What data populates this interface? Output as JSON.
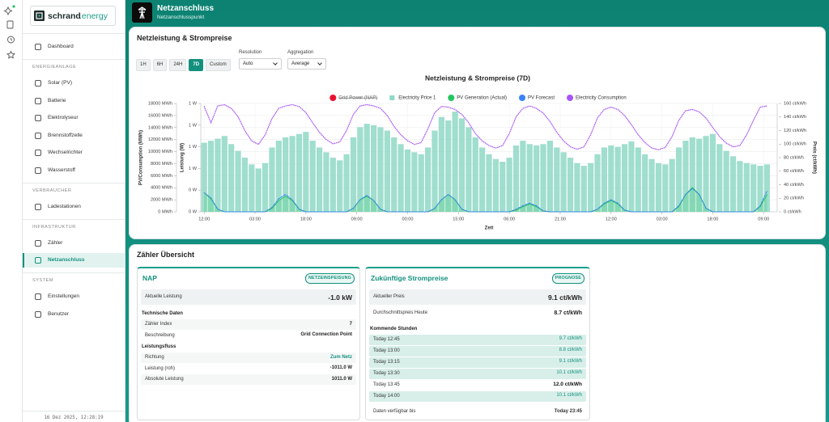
{
  "sidebar": {
    "brand": {
      "name": "schrand",
      "suffix": ".energy"
    },
    "home": "Dashboard",
    "sections": [
      {
        "title": "ENERGIEANLAGE",
        "items": [
          "Solar (PV)",
          "Batterie",
          "Elektrolyseur",
          "Brennstoffzelle",
          "Wechselrichter",
          "Wasserstoff"
        ]
      },
      {
        "title": "VERBRAUCHER",
        "items": [
          "Ladestationen"
        ]
      },
      {
        "title": "INFRASTRUKTUR",
        "items": [
          "Zähler",
          "Netzanschluss"
        ]
      },
      {
        "title": "SYSTEM",
        "items": [
          "Einstellungen",
          "Benutzer"
        ]
      }
    ],
    "active": "Netzanschluss",
    "timestamp": "16 Dez 2025, 12:28:19"
  },
  "header": {
    "title": "Netzanschluss",
    "subtitle": "Netzanschlusspunkt"
  },
  "chart_panel": {
    "title": "Netzleistung & Strompreise",
    "ranges": [
      "1H",
      "6H",
      "24H",
      "7D",
      "Custom"
    ],
    "selected_range": "7D",
    "resolution": {
      "label": "Resolution",
      "value": "Auto"
    },
    "aggregation": {
      "label": "Aggregation",
      "value": "Average"
    }
  },
  "chart_data": {
    "type": "combo",
    "title": "Netzleistung & Strompreise (7D)",
    "xlabel": "Zeit",
    "ylabel": "PV/Consumption (MWh)",
    "y3label": "Leistung (W)",
    "y2label": "Preis (ct/kWh)",
    "grid": true,
    "x": [
      0,
      2,
      4,
      6,
      8,
      10,
      12,
      14,
      16,
      18,
      20,
      22,
      24,
      26,
      28,
      30,
      32,
      34,
      36,
      38,
      40,
      42,
      44,
      46,
      48,
      50,
      52,
      54,
      56,
      58,
      60,
      62,
      64,
      66,
      68,
      70,
      72,
      74,
      76,
      78,
      80,
      82,
      84,
      86,
      88,
      90,
      92,
      94,
      96,
      98,
      100,
      102,
      104,
      106,
      108,
      110,
      112,
      114,
      116,
      118,
      120,
      122,
      124,
      126,
      128,
      130,
      132,
      134,
      136,
      138,
      140,
      142,
      144,
      146,
      148,
      150,
      152,
      154,
      156,
      158,
      160,
      162,
      164,
      166
    ],
    "xlim": [
      -1,
      169
    ],
    "xticks": [
      {
        "value": 0,
        "label": "12:00"
      },
      {
        "value": 15,
        "label": "03:00"
      },
      {
        "value": 30,
        "label": "18:00"
      },
      {
        "value": 45,
        "label": "09:00"
      },
      {
        "value": 60,
        "label": "00:00"
      },
      {
        "value": 75,
        "label": "15:00"
      },
      {
        "value": 90,
        "label": "06:00"
      },
      {
        "value": 105,
        "label": "21:00"
      },
      {
        "value": 120,
        "label": "12:00"
      },
      {
        "value": 135,
        "label": "03:00"
      },
      {
        "value": 150,
        "label": "18:00"
      },
      {
        "value": 165,
        "label": "09:00"
      }
    ],
    "ylim": [
      0,
      18000
    ],
    "yticks": [
      {
        "value": 0,
        "label": "0 MWh"
      },
      {
        "value": 2000,
        "label": "2000 MWh"
      },
      {
        "value": 4000,
        "label": "4000 MWh"
      },
      {
        "value": 6000,
        "label": "6000 MWh"
      },
      {
        "value": 8000,
        "label": "8000 MWh"
      },
      {
        "value": 10000,
        "label": "10000 MWh"
      },
      {
        "value": 12000,
        "label": "12000 MWh"
      },
      {
        "value": 14000,
        "label": "14000 MWh"
      },
      {
        "value": 16000,
        "label": "16000 MWh"
      },
      {
        "value": 18000,
        "label": "18000 MWh"
      }
    ],
    "y3lim": [
      0,
      1.25
    ],
    "y3ticks": [
      {
        "value": 0,
        "label": "0 W"
      },
      {
        "value": 0.25,
        "label": "0 W"
      },
      {
        "value": 0.5,
        "label": "1 W"
      },
      {
        "value": 0.75,
        "label": "1 W"
      },
      {
        "value": 1,
        "label": "1 W"
      },
      {
        "value": 1.25,
        "label": "1 W"
      }
    ],
    "y2lim": [
      0,
      160
    ],
    "y2ticks": [
      {
        "value": 0,
        "label": "0 ct/kWh"
      },
      {
        "value": 20,
        "label": "20 ct/kWh"
      },
      {
        "value": 40,
        "label": "40 ct/kWh"
      },
      {
        "value": 60,
        "label": "60 ct/kWh"
      },
      {
        "value": 80,
        "label": "80 ct/kWh"
      },
      {
        "value": 100,
        "label": "100 ct/kWh"
      },
      {
        "value": 120,
        "label": "120 ct/kWh"
      },
      {
        "value": 140,
        "label": "140 ct/kWh"
      },
      {
        "value": 160,
        "label": "160 ct/kWh"
      }
    ],
    "series": [
      {
        "name": "Grid Power (NAP)",
        "color": "#e8112d",
        "type": "line",
        "axis": "y3",
        "hidden": true
      },
      {
        "name": "Electricity Price 1",
        "color": "#8fd8c6",
        "type": "bar",
        "axis": "y2",
        "values": [
          102,
          105,
          108,
          112,
          100,
          90,
          80,
          70,
          64,
          72,
          95,
          105,
          110,
          112,
          115,
          118,
          105,
          95,
          88,
          80,
          76,
          85,
          110,
          125,
          130,
          128,
          125,
          120,
          110,
          100,
          92,
          88,
          85,
          95,
          120,
          140,
          135,
          148,
          138,
          125,
          110,
          95,
          85,
          78,
          74,
          80,
          98,
          105,
          100,
          98,
          100,
          105,
          95,
          88,
          80,
          72,
          68,
          72,
          85,
          95,
          98,
          96,
          100,
          104,
          95,
          85,
          78,
          72,
          70,
          78,
          95,
          105,
          110,
          108,
          112,
          115,
          100,
          90,
          82,
          75,
          72,
          70,
          68,
          70
        ]
      },
      {
        "name": "PV Generation (Actual)",
        "color": "#22c55e",
        "type": "line",
        "axis": "y3",
        "fill": true,
        "values": [
          0.22,
          0.15,
          0.03,
          0,
          0,
          0,
          0,
          0,
          0,
          0,
          0.04,
          0.13,
          0.18,
          0.13,
          0.03,
          0,
          0,
          0,
          0,
          0,
          0,
          0,
          0.04,
          0.14,
          0.18,
          0.13,
          0.03,
          0,
          0,
          0,
          0,
          0,
          0,
          0,
          0.04,
          0.14,
          0.2,
          0.14,
          0.03,
          0,
          0,
          0,
          0,
          0,
          0,
          0,
          0.02,
          0.06,
          0.09,
          0.06,
          0.01,
          0,
          0,
          0,
          0,
          0,
          0,
          0,
          0.03,
          0.09,
          0.13,
          0.09,
          0.02,
          0,
          0,
          0,
          0,
          0,
          0,
          0,
          0.06,
          0.2,
          0.28,
          0.2,
          0.04,
          0,
          0,
          0,
          0,
          0,
          0,
          0,
          0.06,
          0.2
        ]
      },
      {
        "name": "PV Forecast",
        "color": "#3b82f6",
        "type": "line",
        "axis": "y3",
        "style": "dashed",
        "values": [
          0.22,
          0.16,
          0.03,
          0,
          0,
          0,
          0,
          0,
          0,
          0,
          0.05,
          0.15,
          0.2,
          0.14,
          0.03,
          0,
          0,
          0,
          0,
          0,
          0,
          0,
          0.04,
          0.14,
          0.19,
          0.13,
          0.03,
          0,
          0,
          0,
          0,
          0,
          0,
          0,
          0.04,
          0.14,
          0.2,
          0.14,
          0.03,
          0,
          0,
          0,
          0,
          0,
          0,
          0,
          0.03,
          0.07,
          0.1,
          0.07,
          0.01,
          0,
          0,
          0,
          0,
          0,
          0,
          0,
          0.03,
          0.1,
          0.14,
          0.1,
          0.02,
          0,
          0,
          0,
          0,
          0,
          0,
          0,
          0.07,
          0.2,
          0.27,
          0.2,
          0.04,
          0,
          0,
          0,
          0,
          0,
          0,
          0,
          0.07,
          0.24
        ]
      },
      {
        "name": "Electricity Consumption",
        "color": "#a855f7",
        "type": "line",
        "axis": "y",
        "style": "dotted",
        "values": [
          17500,
          14800,
          17600,
          17800,
          17200,
          15800,
          13500,
          11800,
          11200,
          12800,
          15500,
          17200,
          17600,
          17800,
          17500,
          16500,
          14800,
          13200,
          12000,
          11300,
          11600,
          13500,
          16200,
          17600,
          17800,
          17600,
          17200,
          16000,
          14200,
          12800,
          11800,
          11200,
          11500,
          13800,
          16500,
          17500,
          17400,
          17000,
          16200,
          14800,
          13000,
          11800,
          11000,
          10600,
          11000,
          13000,
          15800,
          17200,
          17600,
          17200,
          16400,
          15000,
          13200,
          11800,
          10800,
          10400,
          10800,
          12800,
          15600,
          17000,
          17400,
          17000,
          16000,
          14500,
          12800,
          11500,
          10600,
          10300,
          10700,
          12500,
          15200,
          16800,
          17000,
          16600,
          15600,
          14000,
          12500,
          11400,
          10800,
          11000,
          12800,
          15200,
          17400,
          17600
        ]
      }
    ]
  },
  "overview": {
    "title": "Zähler Übersicht",
    "meter": {
      "name": "NAP",
      "badge": "NETZEINSPEISUNG",
      "current": {
        "label": "Aktuelle Leistung",
        "value": "-1.0 kW"
      },
      "groups": [
        {
          "title": "Technische Daten",
          "rows": [
            [
              "Zähler Index",
              "7"
            ],
            [
              "Beschreibung",
              "Grid Connection Point"
            ]
          ]
        },
        {
          "title": "Leistungsfluss",
          "rows": [
            [
              "Richtung",
              "Zum Netz"
            ],
            [
              "Leistung (roh)",
              "-1011.0 W"
            ],
            [
              "Absolute Leistung",
              "1011.0 W"
            ]
          ]
        }
      ],
      "accent_row": "Richtung"
    },
    "prices": {
      "name": "Zukünftige Strompreise",
      "badge": "PROGNOSE",
      "current": {
        "label": "Aktueller Preis",
        "value": "9.1 ct/kWh"
      },
      "average": {
        "label": "Durchschnittspreis Heute",
        "value": "8.7 ct/kWh"
      },
      "upcoming_title": "Kommende Stunden",
      "upcoming": [
        [
          "Today 12:45",
          "9.7 ct/kWh"
        ],
        [
          "Today 13:00",
          "8.8 ct/kWh"
        ],
        [
          "Today 13:15",
          "9.1 ct/kWh"
        ],
        [
          "Today 13:30",
          "10.1 ct/kWh"
        ],
        [
          "Today 13:45",
          "12.0 ct/kWh"
        ],
        [
          "Today 14:00",
          "10.1 ct/kWh"
        ]
      ],
      "highlighted": "Today 13:45",
      "footer": {
        "label": "Daten verfügbar bis",
        "value": "Today 23:45"
      }
    }
  }
}
